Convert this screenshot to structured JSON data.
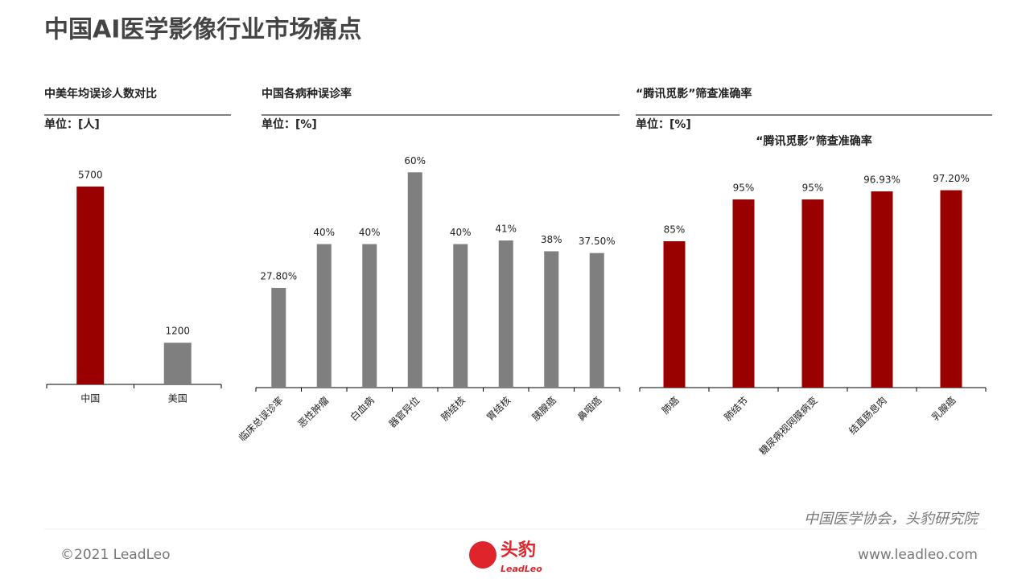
{
  "title": "中国AI医学影像行业市场痛点",
  "source": "中国医学协会，头豹研究院",
  "copyright": "©2021 LeadLeo",
  "website": "www.leadleo.com",
  "logo": {
    "name": "头豹",
    "brand": "LeadLeo"
  },
  "chart_data": [
    {
      "type": "bar",
      "title": "中美年均误诊人数对比",
      "unit": "单位：[人]",
      "categories": [
        "中国",
        "美国"
      ],
      "values": [
        5700,
        1200
      ],
      "colors": [
        "#990000",
        "#7f7f7f"
      ],
      "ylim": [
        0,
        6000
      ]
    },
    {
      "type": "bar",
      "title": "中国各病种误诊率",
      "unit": "单位：[%]",
      "categories": [
        "临床总误诊率",
        "恶性肿瘤",
        "白血病",
        "器官异位",
        "肺结核",
        "胃结核",
        "胰腺癌",
        "鼻咽癌"
      ],
      "values": [
        27.8,
        40,
        40,
        60,
        40,
        41,
        38,
        37.5
      ],
      "value_labels": [
        "27.80%",
        "40%",
        "40%",
        "60%",
        "40%",
        "41%",
        "38%",
        "37.50%"
      ],
      "colors": [
        "#7f7f7f",
        "#7f7f7f",
        "#7f7f7f",
        "#7f7f7f",
        "#7f7f7f",
        "#7f7f7f",
        "#7f7f7f",
        "#7f7f7f"
      ],
      "ylim": [
        0,
        65
      ]
    },
    {
      "type": "bar",
      "title": "“腾讯觅影”筛查准确率",
      "unit": "单位：[%]",
      "subtitle": "“腾讯觅影”筛查准确率",
      "categories": [
        "肺癌",
        "肺结节",
        "糖尿病视网膜病变",
        "结直肠息肉",
        "乳腺癌"
      ],
      "values": [
        85,
        95,
        95,
        96.93,
        97.2
      ],
      "value_labels": [
        "85%",
        "95%",
        "95%",
        "96.93%",
        "97.20%"
      ],
      "colors": [
        "#990000",
        "#990000",
        "#990000",
        "#990000",
        "#990000"
      ],
      "ylim": [
        50,
        100
      ]
    }
  ]
}
